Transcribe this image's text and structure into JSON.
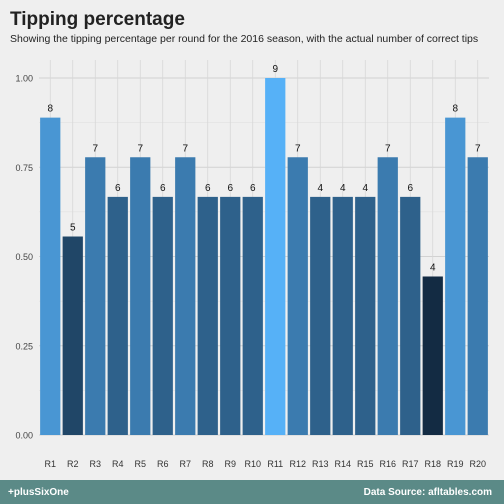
{
  "chart_data": {
    "type": "bar",
    "title": "Tipping percentage",
    "subtitle": "Showing the tipping percentage per round for the 2016 season, with the actual number of correct tips",
    "xlabel": "",
    "ylabel": "",
    "ylim": [
      0,
      1.1
    ],
    "yticks": [
      0.0,
      0.25,
      0.5,
      0.75,
      1.0
    ],
    "ytick_labels": [
      "0.00",
      "0.25",
      "0.50",
      "0.75",
      "1.00"
    ],
    "grid": true,
    "legend": "none",
    "categories": [
      "R1",
      "R2",
      "R3",
      "R4",
      "R5",
      "R6",
      "R7",
      "R8",
      "R9",
      "R10",
      "R11",
      "R12",
      "R13",
      "R14",
      "R15",
      "R16",
      "R17",
      "R18",
      "R19",
      "R20"
    ],
    "values": [
      0.889,
      0.556,
      0.778,
      0.667,
      0.778,
      0.667,
      0.778,
      0.667,
      0.667,
      0.667,
      1.0,
      0.778,
      0.667,
      0.667,
      0.667,
      0.778,
      0.667,
      0.444,
      0.889,
      0.778
    ],
    "labels": [
      "8",
      "5",
      "7",
      "6",
      "7",
      "6",
      "7",
      "6",
      "6",
      "6",
      "9",
      "7",
      "4",
      "4",
      "4",
      "7",
      "6",
      "4",
      "8",
      "7"
    ],
    "color_scale": {
      "low": "#132b43",
      "high": "#56b1f7"
    }
  },
  "footer": {
    "left": "+plusSixOne",
    "right": "Data Source: afltables.com"
  }
}
